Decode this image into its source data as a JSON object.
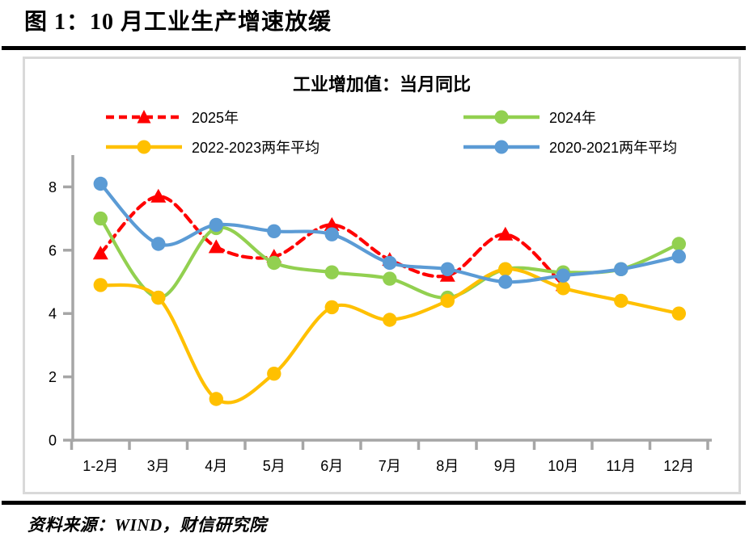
{
  "page": {
    "figure_title": "图 1：10 月工业生产增速放缓",
    "source": "资料来源：WIND，财信研究院"
  },
  "chart_data": {
    "type": "line",
    "title": "工业增加值：当月同比",
    "categories": [
      "1-2月",
      "3月",
      "4月",
      "5月",
      "6月",
      "7月",
      "8月",
      "9月",
      "10月",
      "11月",
      "12月"
    ],
    "series": [
      {
        "name": "2025年",
        "color": "#FF0000",
        "marker": "triangle",
        "dashed": true,
        "values": [
          5.9,
          7.7,
          6.1,
          5.8,
          6.8,
          5.7,
          5.2,
          6.5,
          4.9,
          null,
          null
        ]
      },
      {
        "name": "2024年",
        "color": "#92D050",
        "marker": "circle",
        "dashed": false,
        "values": [
          7.0,
          4.5,
          6.7,
          5.6,
          5.3,
          5.1,
          4.5,
          5.4,
          5.3,
          5.4,
          6.2
        ]
      },
      {
        "name": "2022-2023两年平均",
        "color": "#FFC000",
        "marker": "circle",
        "dashed": false,
        "values": [
          4.9,
          4.5,
          1.3,
          2.1,
          4.2,
          3.8,
          4.4,
          5.4,
          4.8,
          4.4,
          4.0
        ]
      },
      {
        "name": "2020-2021两年平均",
        "color": "#5B9BD5",
        "marker": "circle",
        "dashed": false,
        "values": [
          8.1,
          6.2,
          6.8,
          6.6,
          6.5,
          5.6,
          5.4,
          5.0,
          5.2,
          5.4,
          5.8
        ]
      }
    ],
    "ylabel": "",
    "xlabel": "",
    "y_ticks": [
      0,
      2,
      4,
      6,
      8
    ],
    "ylim": [
      0,
      9
    ],
    "grid": false,
    "legend_position": "top-two-column",
    "axis_color": "#A6A6A6",
    "smooth_lines": true
  }
}
